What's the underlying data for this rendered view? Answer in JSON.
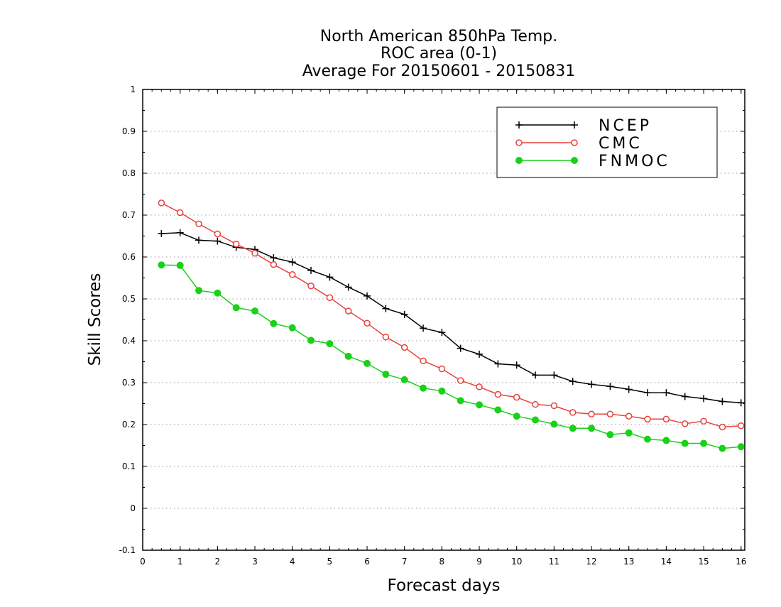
{
  "chart": {
    "title_lines": [
      "North American 850hPa Temp.",
      "ROC area (0-1)",
      "Average For 20150601 - 20150831"
    ],
    "xlabel": "Forecast days",
    "ylabel": "Skill Scores"
  },
  "chart_data": {
    "type": "line",
    "title": "North American 850hPa Temp. ROC area (0-1) Average For 20150601 - 20150831",
    "xlabel": "Forecast days",
    "ylabel": "Skill Scores",
    "xlim": [
      0,
      16.1
    ],
    "ylim": [
      -0.1,
      1
    ],
    "x_ticks": [
      0,
      1,
      2,
      3,
      4,
      5,
      6,
      7,
      8,
      9,
      10,
      11,
      12,
      13,
      14,
      15,
      16
    ],
    "y_ticks": [
      -0.1,
      0,
      0.1,
      0.2,
      0.3,
      0.4,
      0.5,
      0.6,
      0.7,
      0.8,
      0.9,
      1
    ],
    "y_tick_labels": [
      "-0.1",
      "0",
      "0.1",
      "0.2",
      "0.3",
      "0.4",
      "0.5",
      "0.6",
      "0.7",
      "0.8",
      "0.9",
      "1"
    ],
    "grid": "horizontal dotted",
    "legend_position": "top-right",
    "x": [
      0.5,
      1,
      1.5,
      2,
      2.5,
      3,
      3.5,
      4,
      4.5,
      5,
      5.5,
      6,
      6.5,
      7,
      7.5,
      8,
      8.5,
      9,
      9.5,
      10,
      10.5,
      11,
      11.5,
      12,
      12.5,
      13,
      13.5,
      14,
      14.5,
      15,
      15.5,
      16
    ],
    "series": [
      {
        "name": "NCEP",
        "color": "#000000",
        "marker": "plus",
        "values": [
          0.656,
          0.658,
          0.64,
          0.638,
          0.623,
          0.618,
          0.598,
          0.588,
          0.568,
          0.552,
          0.528,
          0.507,
          0.477,
          0.463,
          0.43,
          0.42,
          0.382,
          0.368,
          0.345,
          0.342,
          0.318,
          0.318,
          0.303,
          0.296,
          0.291,
          0.284,
          0.276,
          0.276,
          0.267,
          0.262,
          0.255,
          0.252
        ]
      },
      {
        "name": "CMC",
        "color": "#e8413c",
        "marker": "open-circle",
        "values": [
          0.729,
          0.706,
          0.679,
          0.655,
          0.631,
          0.609,
          0.582,
          0.558,
          0.531,
          0.503,
          0.471,
          0.442,
          0.409,
          0.384,
          0.352,
          0.333,
          0.305,
          0.29,
          0.272,
          0.265,
          0.248,
          0.245,
          0.229,
          0.225,
          0.225,
          0.22,
          0.213,
          0.213,
          0.202,
          0.208,
          0.194,
          0.197
        ]
      },
      {
        "name": "FNMOC",
        "color": "#19d119",
        "marker": "filled-circle",
        "values": [
          0.581,
          0.58,
          0.52,
          0.514,
          0.479,
          0.471,
          0.441,
          0.431,
          0.401,
          0.393,
          0.363,
          0.346,
          0.32,
          0.307,
          0.287,
          0.28,
          0.257,
          0.247,
          0.235,
          0.22,
          0.211,
          0.201,
          0.191,
          0.191,
          0.176,
          0.18,
          0.165,
          0.162,
          0.155,
          0.155,
          0.143,
          0.147
        ]
      }
    ]
  }
}
